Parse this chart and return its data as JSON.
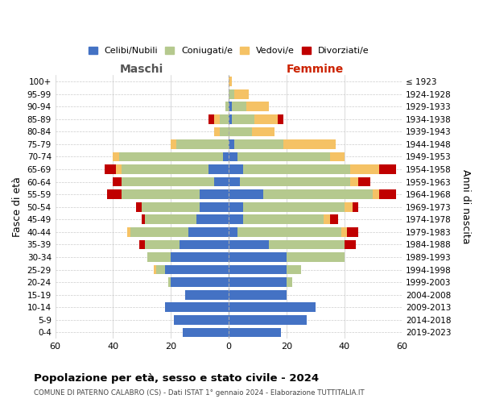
{
  "age_groups": [
    "0-4",
    "5-9",
    "10-14",
    "15-19",
    "20-24",
    "25-29",
    "30-34",
    "35-39",
    "40-44",
    "45-49",
    "50-54",
    "55-59",
    "60-64",
    "65-69",
    "70-74",
    "75-79",
    "80-84",
    "85-89",
    "90-94",
    "95-99",
    "100+"
  ],
  "birth_years": [
    "2019-2023",
    "2014-2018",
    "2009-2013",
    "2004-2008",
    "1999-2003",
    "1994-1998",
    "1989-1993",
    "1984-1988",
    "1979-1983",
    "1974-1978",
    "1969-1973",
    "1964-1968",
    "1959-1963",
    "1954-1958",
    "1949-1953",
    "1944-1948",
    "1939-1943",
    "1934-1938",
    "1929-1933",
    "1924-1928",
    "≤ 1923"
  ],
  "colors": {
    "celibi": "#4472c4",
    "coniugati": "#b5c98e",
    "vedovi": "#f5c265",
    "divorziati": "#c00000"
  },
  "males": {
    "celibi": [
      16,
      19,
      22,
      15,
      20,
      22,
      20,
      17,
      14,
      11,
      10,
      10,
      5,
      7,
      2,
      0,
      0,
      0,
      0,
      0,
      0
    ],
    "coniugati": [
      0,
      0,
      0,
      0,
      1,
      3,
      8,
      12,
      20,
      18,
      20,
      27,
      32,
      30,
      36,
      18,
      3,
      3,
      1,
      0,
      0
    ],
    "vedovi": [
      0,
      0,
      0,
      0,
      0,
      1,
      0,
      0,
      1,
      0,
      0,
      0,
      0,
      2,
      2,
      2,
      2,
      2,
      0,
      0,
      0
    ],
    "divorziati": [
      0,
      0,
      0,
      0,
      0,
      0,
      0,
      2,
      0,
      1,
      2,
      5,
      3,
      4,
      0,
      0,
      0,
      2,
      0,
      0,
      0
    ]
  },
  "females": {
    "celibi": [
      18,
      27,
      30,
      20,
      20,
      20,
      20,
      14,
      3,
      5,
      5,
      12,
      4,
      5,
      3,
      2,
      0,
      1,
      1,
      0,
      0
    ],
    "coniugati": [
      0,
      0,
      0,
      0,
      2,
      5,
      20,
      26,
      36,
      28,
      35,
      38,
      38,
      37,
      32,
      17,
      8,
      8,
      5,
      2,
      0
    ],
    "vedovi": [
      0,
      0,
      0,
      0,
      0,
      0,
      0,
      0,
      2,
      2,
      3,
      2,
      3,
      10,
      5,
      18,
      8,
      8,
      8,
      5,
      1
    ],
    "divorziati": [
      0,
      0,
      0,
      0,
      0,
      0,
      0,
      4,
      4,
      3,
      2,
      6,
      4,
      6,
      0,
      0,
      0,
      2,
      0,
      0,
      0
    ]
  },
  "xlim": 60,
  "title": "Popolazione per età, sesso e stato civile - 2024",
  "subtitle": "COMUNE DI PATERNO CALABRO (CS) - Dati ISTAT 1° gennaio 2024 - Elaborazione TUTTITALIA.IT",
  "xlabel_left": "Maschi",
  "xlabel_right": "Femmine",
  "ylabel_left": "Fasce di età",
  "ylabel_right": "Anni di nascita",
  "legend_labels": [
    "Celibi/Nubili",
    "Coniugati/e",
    "Vedovi/e",
    "Divorziati/e"
  ],
  "bg_color": "#ffffff",
  "grid_color": "#cccccc"
}
